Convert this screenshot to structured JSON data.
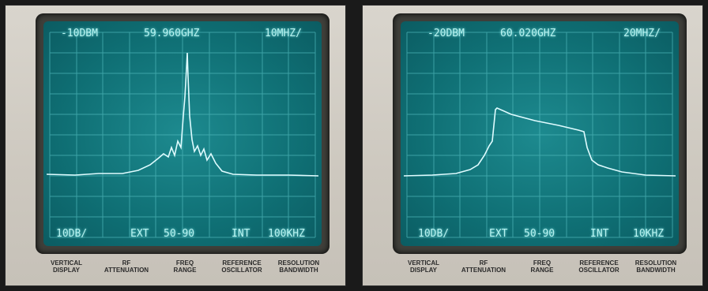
{
  "panels": [
    {
      "readouts": {
        "top_left": "-10DBM",
        "top_center": "59.960GHZ",
        "top_right": "10MHZ/",
        "bottom_left": "10DB/",
        "bottom_ext": "EXT",
        "bottom_range": "50-90",
        "bottom_int": "INT",
        "bottom_right": "100KHZ"
      }
    },
    {
      "readouts": {
        "top_left": "-20DBM",
        "top_center": "60.020GHZ",
        "top_right": "20MHZ/",
        "bottom_left": "10DB/",
        "bottom_ext": "EXT",
        "bottom_range": "50-90",
        "bottom_int": "INT",
        "bottom_right": "10KHZ"
      }
    }
  ],
  "labels": {
    "vertical_1": "VERTICAL",
    "vertical_2": "DISPLAY",
    "rf_1": "RF",
    "rf_2": "ATTENUATION",
    "freq_1": "FREQ",
    "freq_2": "RANGE",
    "ref_1": "REFERENCE",
    "ref_2": "OSCILLATOR",
    "res_1": "RESOLUTION",
    "res_2": "BANDWIDTH"
  },
  "colors": {
    "screen": "#0f6f74",
    "trace": "#d8fbff",
    "panel": "#d2cdc5"
  }
}
